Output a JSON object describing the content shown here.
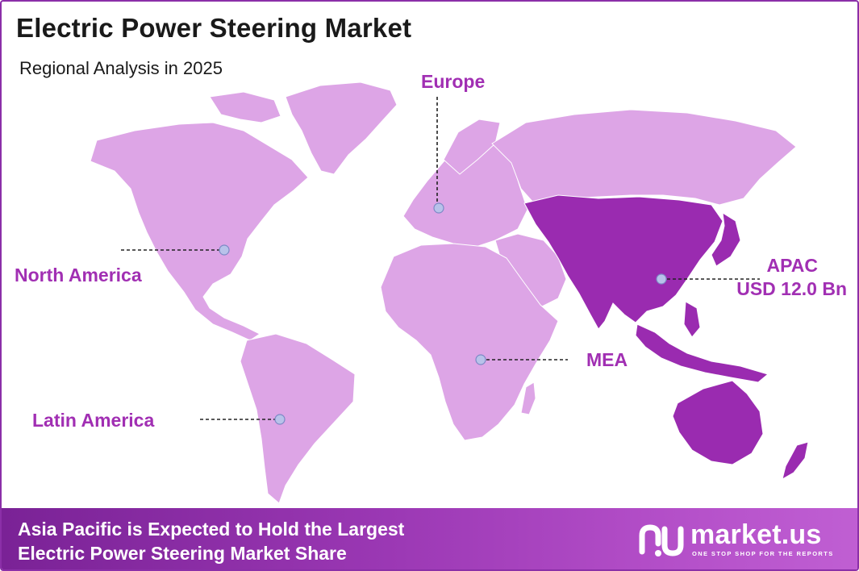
{
  "header": {
    "title": "Electric Power Steering Market",
    "subtitle": "Regional Analysis in 2025"
  },
  "regions": {
    "europe": {
      "label": "Europe"
    },
    "north_america": {
      "label": "North America"
    },
    "apac": {
      "label_line1": "APAC",
      "label_line2": "USD 12.0 Bn",
      "value": 12.0,
      "unit": "USD Bn"
    },
    "mea": {
      "label": "MEA"
    },
    "latin_america": {
      "label": "Latin America"
    }
  },
  "footer": {
    "line1": "Asia Pacific is Expected to Hold the Largest",
    "line2": "Electric Power Steering Market Share"
  },
  "brand": {
    "name": "market.us",
    "tagline": "ONE STOP SHOP FOR THE REPORTS"
  },
  "colors": {
    "highlight_region": "#9a2bb0",
    "other_regions": "#dda5e6",
    "label": "#a12fb3",
    "frame": "#8b2fa8"
  }
}
